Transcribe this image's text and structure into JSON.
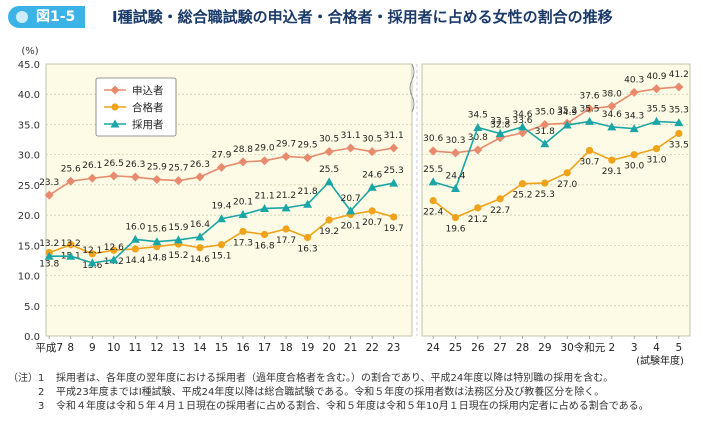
{
  "figure": {
    "label": "図1-5",
    "title": "Ⅰ種試験・総合職試験の申込者・合格者・採用者に占める女性の割合の推移"
  },
  "colors": {
    "applicants": "#e88a6e",
    "passers": "#f0a21b",
    "hires": "#1aa6a6",
    "plot_bg": "#fdfbe6",
    "grid": "#c9c9a8"
  },
  "chart_data": {
    "type": "line",
    "y_unit": "(%)",
    "ylim": [
      0,
      45
    ],
    "y_ticks": [
      "0.0",
      "5.0",
      "10.0",
      "15.0",
      "20.0",
      "25.0",
      "30.0",
      "35.0",
      "40.0",
      "45.0"
    ],
    "xlabel": "(試験年度)",
    "grid": true,
    "legend_position": "top-left",
    "segments": [
      {
        "categories": [
          "平成7",
          "8",
          "9",
          "10",
          "11",
          "12",
          "13",
          "14",
          "15",
          "16",
          "17",
          "18",
          "19",
          "20",
          "21",
          "22",
          "23"
        ],
        "series": [
          {
            "name": "申込者",
            "values": [
              23.3,
              25.6,
              26.1,
              26.5,
              26.3,
              25.9,
              25.7,
              26.3,
              27.9,
              28.8,
              29.0,
              29.7,
              29.5,
              30.5,
              31.1,
              30.5,
              31.1
            ]
          },
          {
            "name": "合格者",
            "values": [
              13.8,
              15.1,
              13.6,
              14.2,
              14.4,
              14.8,
              15.2,
              14.6,
              15.1,
              17.3,
              16.8,
              17.7,
              16.3,
              19.2,
              20.1,
              20.7,
              19.7
            ]
          },
          {
            "name": "採用者",
            "values": [
              13.2,
              13.2,
              12.1,
              12.6,
              16.0,
              15.6,
              15.9,
              16.4,
              19.4,
              20.1,
              21.1,
              21.2,
              21.8,
              25.5,
              20.7,
              24.6,
              25.3
            ]
          }
        ]
      },
      {
        "categories": [
          "24",
          "25",
          "26",
          "27",
          "28",
          "29",
          "30",
          "令和元",
          "2",
          "3",
          "4",
          "5"
        ],
        "series": [
          {
            "name": "申込者",
            "values": [
              30.6,
              30.3,
              30.8,
              32.8,
              33.6,
              35.0,
              35.2,
              37.6,
              38.0,
              40.3,
              40.9,
              41.2
            ]
          },
          {
            "name": "合格者",
            "values": [
              22.4,
              19.6,
              21.2,
              22.7,
              25.2,
              25.3,
              27.0,
              30.7,
              29.1,
              30.0,
              31.0,
              33.5
            ]
          },
          {
            "name": "採用者",
            "values": [
              25.5,
              24.4,
              34.5,
              33.5,
              34.6,
              31.8,
              34.9,
              35.5,
              34.6,
              34.3,
              35.5,
              35.3
            ]
          }
        ]
      }
    ]
  },
  "notes": {
    "lead": "（注）",
    "items": [
      {
        "num": "1",
        "text": "採用者は、各年度の翌年度における採用者（過年度合格者を含む。）の割合であり、平成24年度以降は特別職の採用を含む。"
      },
      {
        "num": "2",
        "text": "平成23年度まではⅠ種試験、平成24年度以降は総合職試験である。令和５年度の採用者数は法務区分及び教養区分を除く。"
      },
      {
        "num": "3",
        "text": "令和４年度は令和５年４月１日現在の採用者に占める割合、令和５年度は令和５年10月１日現在の採用内定者に占める割合である。"
      }
    ]
  }
}
